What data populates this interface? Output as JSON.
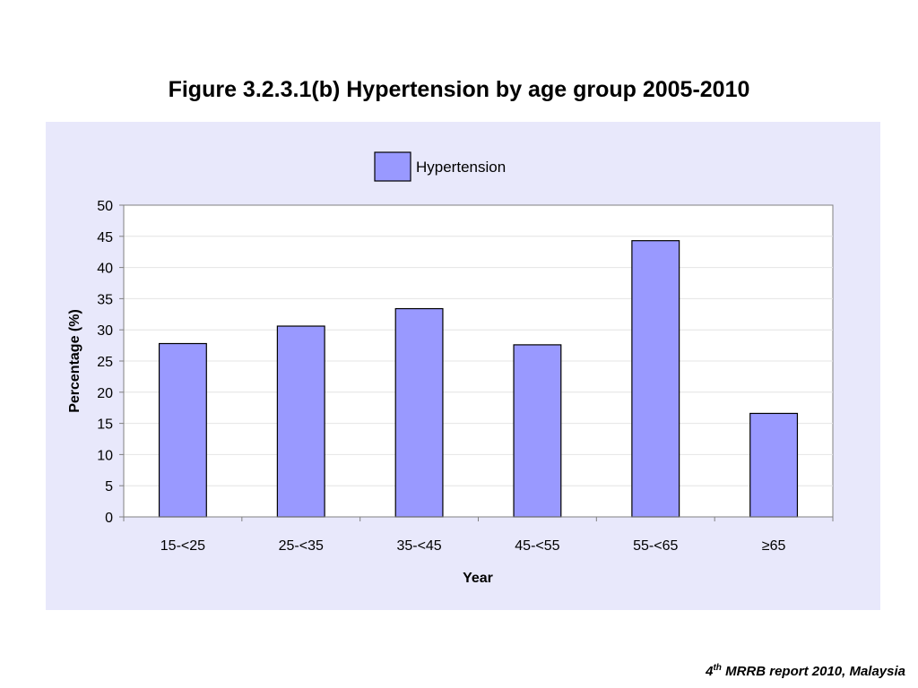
{
  "slide": {
    "title": "Figure 3.2.3.1(b) Hypertension by age group 2005-2010",
    "footer": {
      "ordinal_number": "4",
      "ordinal_suffix": "th",
      "text": " MRRB report 2010, Malaysia"
    }
  },
  "colors": {
    "panel_background": "#e8e8fb",
    "plot_background": "#ffffff",
    "bar_fill": "#9999ff",
    "bar_stroke": "#000000"
  },
  "chart_data": {
    "type": "bar",
    "title": "",
    "categories": [
      "15-<25",
      "25-<35",
      "35-<45",
      "45-<55",
      "55-<65",
      "≥65"
    ],
    "series": [
      {
        "name": "Hypertension",
        "values": [
          27.8,
          30.6,
          33.4,
          27.6,
          44.3,
          16.6
        ]
      }
    ],
    "xlabel": "Year",
    "ylabel": "Percentage (%)",
    "ylim": [
      0,
      50
    ],
    "yticks": [
      0,
      5,
      10,
      15,
      20,
      25,
      30,
      35,
      40,
      45,
      50
    ],
    "grid": true,
    "legend_position": "top"
  }
}
